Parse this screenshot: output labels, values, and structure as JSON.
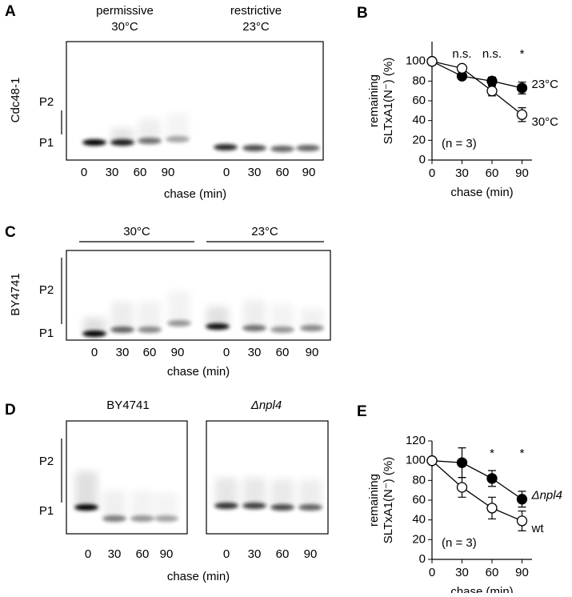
{
  "panels": {
    "a": "A",
    "b": "B",
    "c": "C",
    "d": "D",
    "e": "E"
  },
  "gel_a": {
    "conditions": [
      {
        "name": "permissive",
        "temp": "30°C"
      },
      {
        "name": "restrictive",
        "temp": "23°C"
      }
    ],
    "strain": "Cdc48-1",
    "markers": [
      "P2",
      "P1"
    ],
    "lanes": [
      "0",
      "30",
      "60",
      "90",
      "0",
      "30",
      "60",
      "90"
    ],
    "xlabel": "chase (min)"
  },
  "gel_c": {
    "conditions": [
      "30°C",
      "23°C"
    ],
    "strain": "BY4741",
    "markers": [
      "P2",
      "P1"
    ],
    "lanes": [
      "0",
      "30",
      "60",
      "90",
      "0",
      "30",
      "60",
      "90"
    ],
    "xlabel": "chase (min)"
  },
  "gel_d": {
    "conditions": [
      "BY4741",
      "Δnpl4"
    ],
    "markers": [
      "P2",
      "P1"
    ],
    "lanes": [
      "0",
      "30",
      "60",
      "90",
      "0",
      "30",
      "60",
      "90"
    ],
    "xlabel": "chase (min)"
  },
  "chart_data": [
    {
      "type": "line",
      "ylabel": [
        "remaining",
        "SLTxA1(N⁻) (%)"
      ],
      "xlabel": "chase (min)",
      "x": [
        0,
        30,
        60,
        90
      ],
      "xlim": [
        0,
        100
      ],
      "xticks": [
        0,
        30,
        60,
        90
      ],
      "ylim": [
        0,
        120
      ],
      "yticks": [
        0,
        20,
        40,
        60,
        80,
        100
      ],
      "series": [
        {
          "name": "23°C",
          "color": "#000000",
          "marker": "filled",
          "values": [
            100,
            85,
            80,
            73
          ],
          "errors": [
            0,
            3,
            4,
            6
          ]
        },
        {
          "name": "30°C",
          "color": "#000000",
          "marker": "open",
          "values": [
            100,
            93,
            70,
            46
          ],
          "errors": [
            0,
            3,
            5,
            7
          ]
        }
      ],
      "annotations": [
        {
          "x": 30,
          "text": "n.s."
        },
        {
          "x": 60,
          "text": "n.s."
        },
        {
          "x": 90,
          "text": "*"
        }
      ],
      "note": "(n = 3)"
    },
    {
      "type": "line",
      "ylabel": [
        "remaining",
        "SLTxA1(N⁻) (%)"
      ],
      "xlabel": "chase (min)",
      "x": [
        0,
        30,
        60,
        90
      ],
      "xlim": [
        0,
        100
      ],
      "xticks": [
        0,
        30,
        60,
        90
      ],
      "ylim": [
        0,
        120
      ],
      "yticks": [
        0,
        20,
        40,
        60,
        80,
        100,
        120
      ],
      "series": [
        {
          "name": "Δnpl4",
          "italic": true,
          "color": "#000000",
          "marker": "filled",
          "values": [
            100,
            98,
            82,
            61
          ],
          "errors": [
            0,
            15,
            8,
            8
          ]
        },
        {
          "name": "wt",
          "color": "#000000",
          "marker": "open",
          "values": [
            100,
            73,
            52,
            39
          ],
          "errors": [
            0,
            10,
            11,
            10
          ]
        }
      ],
      "annotations": [
        {
          "x": 60,
          "text": "*"
        },
        {
          "x": 90,
          "text": "*"
        }
      ],
      "note": "(n = 3)"
    }
  ]
}
